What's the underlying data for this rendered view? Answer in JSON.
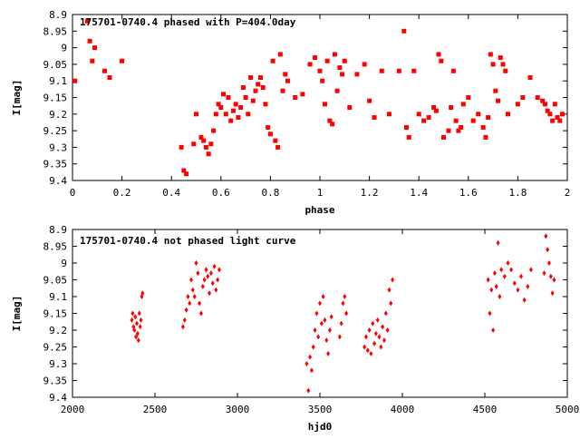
{
  "chart_data": [
    {
      "type": "scatter",
      "title": "175701-0740.4 phased with P=404.0day",
      "xlabel": "phase",
      "ylabel": "I[mag]",
      "xlim": [
        0,
        2
      ],
      "ylim": [
        9.4,
        8.9
      ],
      "y_inverted": true,
      "xticks": [
        "0",
        "0.2",
        "0.4",
        "0.6",
        "0.8",
        "1",
        "1.2",
        "1.4",
        "1.6",
        "1.8",
        "2"
      ],
      "xtick_values": [
        0,
        0.2,
        0.4,
        0.6,
        0.8,
        1.0,
        1.2,
        1.4,
        1.6,
        1.8,
        2.0
      ],
      "yticks": [
        "8.9",
        "8.95",
        "9",
        "9.05",
        "9.1",
        "9.15",
        "9.2",
        "9.25",
        "9.3",
        "9.35",
        "9.4"
      ],
      "ytick_values": [
        8.9,
        8.95,
        9.0,
        9.05,
        9.1,
        9.15,
        9.2,
        9.25,
        9.3,
        9.35,
        9.4
      ],
      "marker_color": "#ff0000",
      "x": [
        0.01,
        0.06,
        0.07,
        0.08,
        0.09,
        0.13,
        0.15,
        0.2,
        0.44,
        0.45,
        0.46,
        0.49,
        0.5,
        0.52,
        0.53,
        0.54,
        0.55,
        0.56,
        0.57,
        0.58,
        0.59,
        0.6,
        0.61,
        0.62,
        0.63,
        0.64,
        0.65,
        0.66,
        0.67,
        0.68,
        0.69,
        0.7,
        0.71,
        0.72,
        0.73,
        0.74,
        0.75,
        0.76,
        0.77,
        0.78,
        0.79,
        0.8,
        0.81,
        0.82,
        0.83,
        0.84,
        0.85,
        0.86,
        0.87,
        0.9,
        0.93,
        0.96,
        0.98,
        1.0,
        1.01,
        1.02,
        1.03,
        1.04,
        1.05,
        1.06,
        1.07,
        1.08,
        1.09,
        1.1,
        1.12,
        1.15,
        1.18,
        1.2,
        1.22,
        1.25,
        1.28,
        1.32,
        1.34,
        1.35,
        1.36,
        1.38,
        1.4,
        1.42,
        1.44,
        1.46,
        1.47,
        1.48,
        1.49,
        1.5,
        1.52,
        1.53,
        1.54,
        1.55,
        1.56,
        1.57,
        1.58,
        1.6,
        1.62,
        1.64,
        1.66,
        1.67,
        1.68,
        1.69,
        1.7,
        1.71,
        1.72,
        1.73,
        1.74,
        1.75,
        1.76,
        1.8,
        1.82,
        1.85,
        1.88,
        1.9,
        1.91,
        1.92,
        1.93,
        1.94,
        1.95,
        1.96,
        1.97,
        1.98
      ],
      "y": [
        9.1,
        8.92,
        8.98,
        9.04,
        9.0,
        9.07,
        9.09,
        9.04,
        9.3,
        9.37,
        9.38,
        9.29,
        9.2,
        9.27,
        9.28,
        9.3,
        9.32,
        9.29,
        9.25,
        9.2,
        9.17,
        9.18,
        9.14,
        9.2,
        9.15,
        9.22,
        9.19,
        9.17,
        9.21,
        9.18,
        9.12,
        9.15,
        9.2,
        9.09,
        9.16,
        9.13,
        9.11,
        9.09,
        9.12,
        9.17,
        9.24,
        9.26,
        9.04,
        9.28,
        9.3,
        9.02,
        9.13,
        9.08,
        9.1,
        9.15,
        9.14,
        9.05,
        9.03,
        9.07,
        9.1,
        9.17,
        9.04,
        9.22,
        9.23,
        9.02,
        9.13,
        9.06,
        9.08,
        9.04,
        9.18,
        9.08,
        9.05,
        9.16,
        9.21,
        9.07,
        9.2,
        9.07,
        8.95,
        9.24,
        9.27,
        9.07,
        9.2,
        9.22,
        9.21,
        9.18,
        9.19,
        9.02,
        9.04,
        9.27,
        9.25,
        9.18,
        9.07,
        9.22,
        9.25,
        9.24,
        9.17,
        9.15,
        9.22,
        9.2,
        9.24,
        9.27,
        9.21,
        9.02,
        9.05,
        9.13,
        9.16,
        9.03,
        9.05,
        9.07,
        9.2,
        9.17,
        9.15,
        9.09,
        9.15,
        9.16,
        9.17,
        9.19,
        9.2,
        9.22,
        9.17,
        9.21,
        9.22,
        9.2
      ]
    },
    {
      "type": "scatter",
      "title": "175701-0740.4 not phased light curve",
      "xlabel": "hjd0",
      "ylabel": "I[mag]",
      "xlim": [
        2000,
        5000
      ],
      "ylim": [
        9.4,
        8.9
      ],
      "y_inverted": true,
      "xticks": [
        "2000",
        "2500",
        "3000",
        "3500",
        "4000",
        "4500",
        "5000"
      ],
      "xtick_values": [
        2000,
        2500,
        3000,
        3500,
        4000,
        4500,
        5000
      ],
      "yticks": [
        "8.9",
        "8.95",
        "9",
        "9.05",
        "9.1",
        "9.15",
        "9.2",
        "9.25",
        "9.3",
        "9.35",
        "9.4"
      ],
      "ytick_values": [
        8.9,
        8.95,
        9.0,
        9.05,
        9.1,
        9.15,
        9.2,
        9.25,
        9.3,
        9.35,
        9.4
      ],
      "marker_color": "#ff0000",
      "x": [
        2360,
        2365,
        2370,
        2375,
        2380,
        2385,
        2390,
        2395,
        2400,
        2405,
        2410,
        2415,
        2420,
        2425,
        2670,
        2680,
        2690,
        2700,
        2710,
        2720,
        2730,
        2740,
        2750,
        2760,
        2770,
        2780,
        2790,
        2800,
        2810,
        2820,
        2830,
        2840,
        2850,
        2860,
        2870,
        2880,
        2890,
        3420,
        3430,
        3440,
        3450,
        3460,
        3470,
        3480,
        3490,
        3500,
        3510,
        3520,
        3530,
        3540,
        3550,
        3560,
        3570,
        3620,
        3630,
        3640,
        3650,
        3660,
        3770,
        3780,
        3790,
        3800,
        3810,
        3820,
        3830,
        3840,
        3850,
        3860,
        3870,
        3880,
        3890,
        3900,
        3910,
        3920,
        3930,
        3940,
        4520,
        4530,
        4540,
        4550,
        4560,
        4570,
        4580,
        4590,
        4600,
        4620,
        4640,
        4660,
        4680,
        4700,
        4720,
        4740,
        4760,
        4780,
        4860,
        4870,
        4880,
        4890,
        4900,
        4910,
        4920
      ],
      "y": [
        9.17,
        9.15,
        9.19,
        9.2,
        9.16,
        9.22,
        9.18,
        9.21,
        9.23,
        9.15,
        9.19,
        9.17,
        9.1,
        9.09,
        9.19,
        9.17,
        9.14,
        9.1,
        9.12,
        9.05,
        9.08,
        9.1,
        9.0,
        9.03,
        9.12,
        9.15,
        9.07,
        9.05,
        9.02,
        9.04,
        9.09,
        9.03,
        9.06,
        9.01,
        9.08,
        9.05,
        9.02,
        9.3,
        9.38,
        9.28,
        9.32,
        9.25,
        9.2,
        9.15,
        9.22,
        9.12,
        9.18,
        9.1,
        9.17,
        9.23,
        9.27,
        9.2,
        9.16,
        9.22,
        9.18,
        9.12,
        9.1,
        9.15,
        9.25,
        9.22,
        9.26,
        9.2,
        9.27,
        9.18,
        9.24,
        9.21,
        9.17,
        9.22,
        9.25,
        9.19,
        9.23,
        9.15,
        9.2,
        9.08,
        9.12,
        9.05,
        9.05,
        9.15,
        9.08,
        9.2,
        9.03,
        9.07,
        8.94,
        9.1,
        9.02,
        9.04,
        9.0,
        9.02,
        9.06,
        9.08,
        9.04,
        9.11,
        9.07,
        9.02,
        9.03,
        8.92,
        8.96,
        9.0,
        9.04,
        9.09,
        9.05
      ]
    }
  ]
}
